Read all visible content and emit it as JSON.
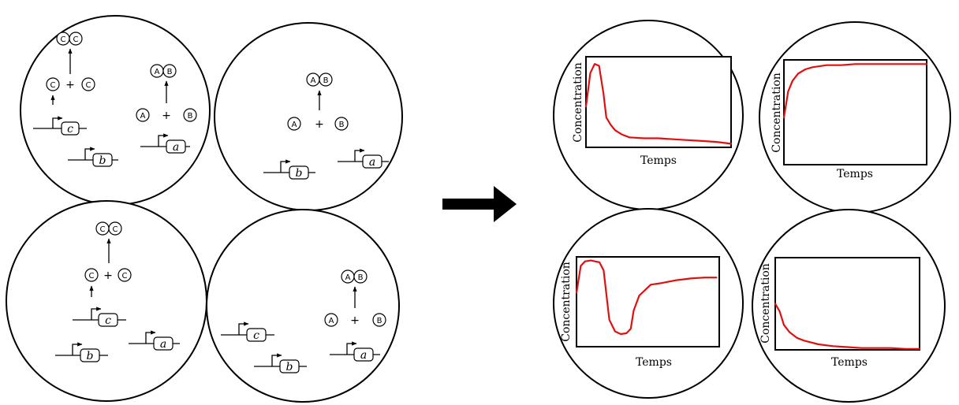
{
  "colors": {
    "curve": "#e01010",
    "outline": "#000000",
    "background": "#ffffff"
  },
  "labels": {
    "operator": "+",
    "monomer_a": "A",
    "monomer_b": "B",
    "monomer_c": "C",
    "gene_a": "a",
    "gene_b": "b",
    "gene_c": "c",
    "time_axis": "Temps",
    "concentration_axis": "Concentration"
  },
  "icons": {
    "transition_arrow": "right-arrow-icon",
    "reaction_arrow": "up-arrow-icon",
    "promoter": "promoter-arrow-icon"
  },
  "chart_data": [
    {
      "type": "line",
      "xlabel": "Temps",
      "ylabel": "Concentration",
      "x": [
        0,
        0.03,
        0.06,
        0.09,
        0.12,
        0.14,
        0.17,
        0.2,
        0.25,
        0.3,
        0.4,
        0.5,
        0.6,
        0.7,
        0.8,
        0.9,
        1.0
      ],
      "y": [
        0.45,
        0.82,
        0.92,
        0.9,
        0.6,
        0.33,
        0.25,
        0.19,
        0.14,
        0.11,
        0.1,
        0.1,
        0.09,
        0.08,
        0.07,
        0.06,
        0.04
      ],
      "xlim": [
        0,
        1
      ],
      "ylim": [
        0,
        1
      ]
    },
    {
      "type": "line",
      "xlabel": "Temps",
      "ylabel": "Concentration",
      "x": [
        0,
        0.03,
        0.06,
        0.1,
        0.15,
        0.2,
        0.3,
        0.4,
        0.5,
        0.6,
        0.7,
        0.8,
        0.9,
        1.0
      ],
      "y": [
        0.45,
        0.7,
        0.8,
        0.87,
        0.91,
        0.93,
        0.95,
        0.95,
        0.96,
        0.96,
        0.96,
        0.96,
        0.96,
        0.96
      ],
      "xlim": [
        0,
        1
      ],
      "ylim": [
        0,
        1
      ]
    },
    {
      "type": "line",
      "xlabel": "Temps",
      "ylabel": "Concentration",
      "x": [
        0,
        0.03,
        0.06,
        0.1,
        0.16,
        0.19,
        0.23,
        0.27,
        0.31,
        0.35,
        0.38,
        0.4,
        0.44,
        0.48,
        0.52,
        0.6,
        0.7,
        0.8,
        0.9,
        0.98
      ],
      "y": [
        0.6,
        0.9,
        0.95,
        0.96,
        0.94,
        0.85,
        0.3,
        0.17,
        0.14,
        0.15,
        0.2,
        0.4,
        0.57,
        0.63,
        0.69,
        0.71,
        0.74,
        0.76,
        0.77,
        0.77
      ],
      "xlim": [
        0,
        1
      ],
      "ylim": [
        0,
        1
      ]
    },
    {
      "type": "line",
      "xlabel": "Temps",
      "ylabel": "Concentration",
      "x": [
        0,
        0.03,
        0.06,
        0.1,
        0.15,
        0.2,
        0.3,
        0.4,
        0.5,
        0.6,
        0.7,
        0.8,
        0.9,
        1.0
      ],
      "y": [
        0.5,
        0.42,
        0.27,
        0.19,
        0.13,
        0.1,
        0.06,
        0.04,
        0.03,
        0.02,
        0.02,
        0.02,
        0.01,
        0.01
      ],
      "xlim": [
        0,
        1
      ],
      "ylim": [
        0,
        1
      ]
    }
  ]
}
